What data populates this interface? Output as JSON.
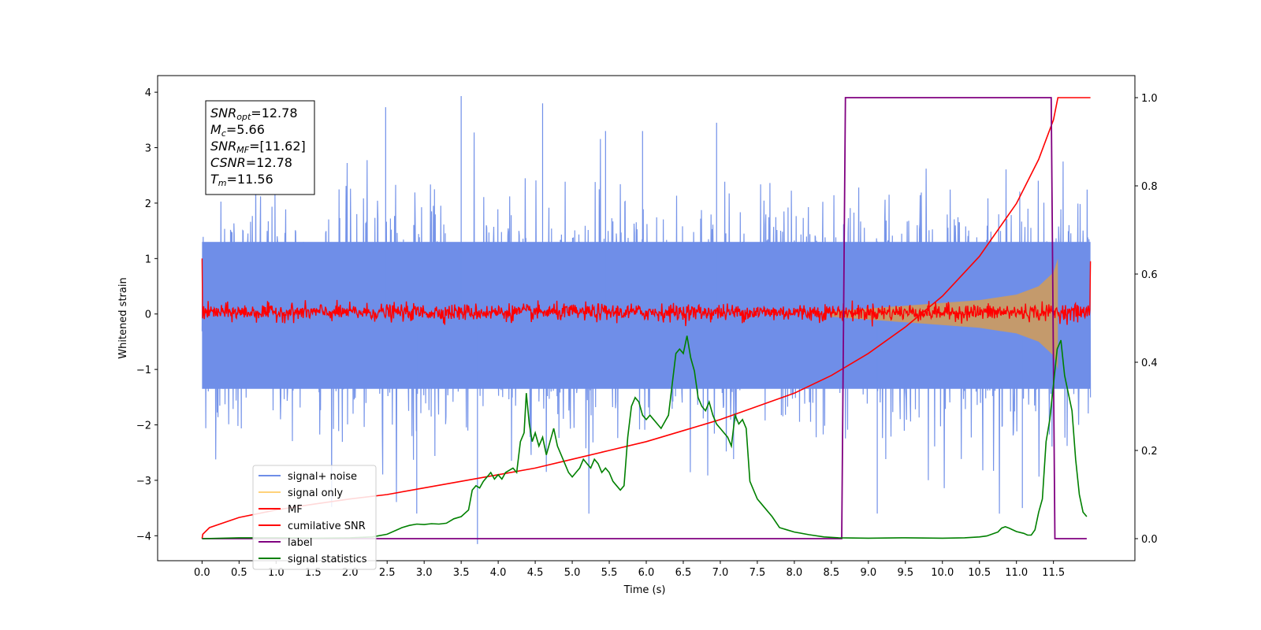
{
  "chart_data": {
    "type": "line",
    "xlabel": "Time (s)",
    "ylabel": "Whitened strain",
    "xlim": [
      -0.6,
      12.6
    ],
    "ylim_left": [
      -4.45,
      4.3
    ],
    "ylim_right": [
      -0.05,
      1.05
    ],
    "x_ticks": [
      "0.0",
      "0.5",
      "1.0",
      "1.5",
      "2.0",
      "2.5",
      "3.0",
      "3.5",
      "4.0",
      "4.5",
      "5.0",
      "5.5",
      "6.0",
      "6.5",
      "7.0",
      "7.5",
      "8.0",
      "8.5",
      "9.0",
      "9.5",
      "10.0",
      "10.5",
      "11.0",
      "11.5"
    ],
    "y_ticks_left": [
      "4",
      "3",
      "2",
      "1",
      "0",
      "−1",
      "−2",
      "−3",
      "−4"
    ],
    "y_ticks_right": [
      "1.0",
      "0.8",
      "0.6",
      "0.4",
      "0.2",
      "0.0"
    ],
    "colors": {
      "signal_noise": "#6f8ee8",
      "signal_only": "#c49a6c",
      "mf": "#ff0000",
      "cumulative_snr": "#ff0000",
      "label": "#800080",
      "signal_statistics": "#008000"
    },
    "annotation": {
      "snr_opt": {
        "name": "SNR",
        "sub": "opt",
        "value": "=12.78"
      },
      "mc": {
        "name": "M",
        "sub": "c",
        "value": "=5.66"
      },
      "snr_mf": {
        "name": "SNR",
        "sub": "MF",
        "value": "=[11.62]"
      },
      "csnr": {
        "name": "CSNR",
        "sub": "",
        "value": "=12.78"
      },
      "tm": {
        "name": "T",
        "sub": "m",
        "value": "=11.56"
      }
    },
    "legend": {
      "position": "lower-left",
      "entries": [
        "signal+ noise",
        "signal only",
        "MF",
        "cumilative SNR",
        "label",
        "signal statistics"
      ]
    },
    "series": [
      {
        "name": "signal+ noise",
        "axis": "left",
        "style": "noise band",
        "envelope_mid": [
          1.3,
          -1.35
        ],
        "spike_max": 3.93,
        "spike_min": -4.15
      },
      {
        "name": "signal only",
        "axis": "left",
        "style": "chirp envelope",
        "amplitude_x": [
          8.5,
          9.0,
          9.5,
          10.0,
          10.5,
          11.0,
          11.3,
          11.5,
          11.56
        ],
        "amplitude_y": [
          0.05,
          0.1,
          0.15,
          0.2,
          0.25,
          0.35,
          0.5,
          0.75,
          1.0
        ]
      },
      {
        "name": "MF",
        "axis": "left",
        "style": "noisy band around 0",
        "x_range": [
          0.0,
          12.0
        ],
        "amplitude": 0.15
      },
      {
        "name": "cumilative SNR",
        "axis": "right",
        "x": [
          0.0,
          0.01,
          0.1,
          0.5,
          1.0,
          1.5,
          2.0,
          2.5,
          3.0,
          3.5,
          4.0,
          4.5,
          5.0,
          5.5,
          6.0,
          6.5,
          7.0,
          7.5,
          8.0,
          8.5,
          9.0,
          9.5,
          10.0,
          10.5,
          11.0,
          11.3,
          11.5,
          11.56,
          12.0
        ],
        "y": [
          0.0,
          0.01,
          0.025,
          0.048,
          0.065,
          0.078,
          0.09,
          0.1,
          0.115,
          0.13,
          0.145,
          0.16,
          0.18,
          0.2,
          0.22,
          0.245,
          0.27,
          0.3,
          0.33,
          0.37,
          0.42,
          0.48,
          0.55,
          0.64,
          0.76,
          0.86,
          0.95,
          1.0,
          1.0
        ]
      },
      {
        "name": "label",
        "axis": "right",
        "x": [
          0.0,
          8.64,
          8.69,
          11.47,
          11.52,
          11.95
        ],
        "y": [
          0.0,
          0.0,
          1.0,
          1.0,
          0.0,
          0.0
        ]
      },
      {
        "name": "signal statistics",
        "axis": "right",
        "x": [
          0.0,
          0.5,
          1.0,
          1.5,
          2.0,
          2.3,
          2.5,
          2.7,
          2.8,
          2.9,
          3.0,
          3.1,
          3.2,
          3.3,
          3.4,
          3.5,
          3.6,
          3.65,
          3.7,
          3.75,
          3.8,
          3.85,
          3.9,
          3.95,
          4.0,
          4.05,
          4.1,
          4.15,
          4.2,
          4.25,
          4.3,
          4.35,
          4.38,
          4.42,
          4.46,
          4.5,
          4.55,
          4.6,
          4.65,
          4.7,
          4.75,
          4.8,
          4.85,
          4.9,
          4.95,
          5.0,
          5.05,
          5.1,
          5.15,
          5.2,
          5.25,
          5.3,
          5.35,
          5.4,
          5.45,
          5.5,
          5.55,
          5.6,
          5.65,
          5.7,
          5.75,
          5.8,
          5.85,
          5.9,
          5.95,
          6.0,
          6.05,
          6.1,
          6.15,
          6.2,
          6.3,
          6.35,
          6.4,
          6.45,
          6.5,
          6.55,
          6.6,
          6.65,
          6.7,
          6.75,
          6.8,
          6.85,
          6.9,
          6.95,
          7.0,
          7.05,
          7.1,
          7.15,
          7.2,
          7.25,
          7.3,
          7.35,
          7.4,
          7.45,
          7.5,
          7.55,
          7.6,
          7.7,
          7.8,
          7.9,
          8.0,
          8.2,
          8.4,
          8.6,
          9.0,
          9.5,
          10.0,
          10.3,
          10.5,
          10.6,
          10.7,
          10.75,
          10.8,
          10.85,
          10.9,
          11.0,
          11.1,
          11.15,
          11.2,
          11.25,
          11.3,
          11.35,
          11.4,
          11.45,
          11.5,
          11.55,
          11.6,
          11.65,
          11.7,
          11.75,
          11.8,
          11.85,
          11.9,
          11.95
        ],
        "y": [
          0.0,
          0.002,
          0.002,
          0.001,
          0.002,
          0.004,
          0.01,
          0.025,
          0.03,
          0.033,
          0.032,
          0.034,
          0.033,
          0.035,
          0.045,
          0.05,
          0.065,
          0.11,
          0.12,
          0.115,
          0.13,
          0.14,
          0.15,
          0.135,
          0.145,
          0.135,
          0.15,
          0.155,
          0.16,
          0.15,
          0.22,
          0.24,
          0.33,
          0.26,
          0.22,
          0.24,
          0.21,
          0.23,
          0.19,
          0.22,
          0.25,
          0.21,
          0.19,
          0.17,
          0.15,
          0.14,
          0.15,
          0.16,
          0.18,
          0.17,
          0.16,
          0.18,
          0.17,
          0.15,
          0.16,
          0.15,
          0.13,
          0.12,
          0.11,
          0.12,
          0.23,
          0.3,
          0.32,
          0.31,
          0.28,
          0.27,
          0.28,
          0.27,
          0.26,
          0.25,
          0.28,
          0.35,
          0.42,
          0.43,
          0.42,
          0.46,
          0.41,
          0.38,
          0.32,
          0.3,
          0.29,
          0.31,
          0.28,
          0.26,
          0.25,
          0.24,
          0.23,
          0.21,
          0.28,
          0.26,
          0.27,
          0.25,
          0.13,
          0.11,
          0.09,
          0.08,
          0.07,
          0.05,
          0.025,
          0.02,
          0.015,
          0.009,
          0.004,
          0.002,
          0.001,
          0.002,
          0.001,
          0.002,
          0.004,
          0.006,
          0.012,
          0.015,
          0.024,
          0.027,
          0.024,
          0.016,
          0.012,
          0.008,
          0.008,
          0.02,
          0.06,
          0.09,
          0.22,
          0.27,
          0.35,
          0.43,
          0.45,
          0.37,
          0.33,
          0.29,
          0.18,
          0.1,
          0.06,
          0.05
        ]
      }
    ]
  }
}
